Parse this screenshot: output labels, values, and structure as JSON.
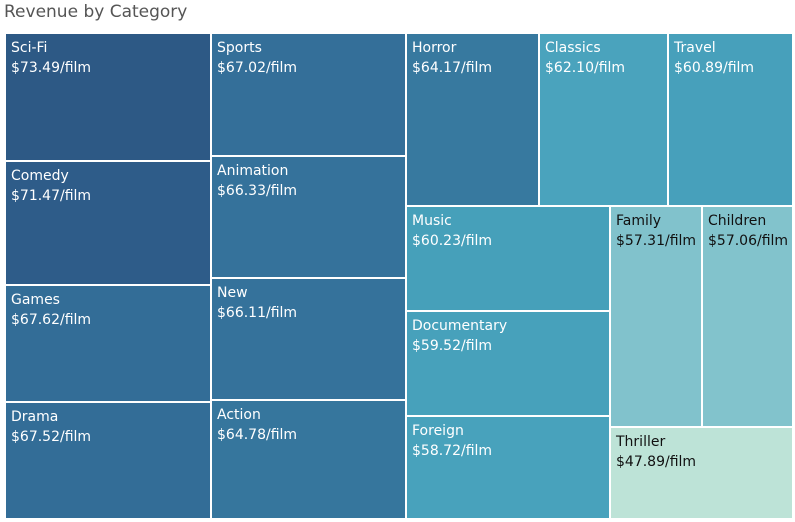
{
  "chart_data": {
    "type": "treemap",
    "title": "Revenue by Category",
    "value_suffix": "/film",
    "items": [
      {
        "name": "Sci-Fi",
        "label": "$73.49/film",
        "value": 73.49,
        "color": "#2d5985",
        "text_color": "#ffffff"
      },
      {
        "name": "Comedy",
        "label": "$71.47/film",
        "value": 71.47,
        "color": "#2e5c89",
        "text_color": "#ffffff"
      },
      {
        "name": "Games",
        "label": "$67.62/film",
        "value": 67.62,
        "color": "#336d97",
        "text_color": "#ffffff"
      },
      {
        "name": "Drama",
        "label": "$67.52/film",
        "value": 67.52,
        "color": "#336d97",
        "text_color": "#ffffff"
      },
      {
        "name": "Sports",
        "label": "$67.02/film",
        "value": 67.02,
        "color": "#346f99",
        "text_color": "#ffffff"
      },
      {
        "name": "Animation",
        "label": "$66.33/film",
        "value": 66.33,
        "color": "#35729b",
        "text_color": "#ffffff"
      },
      {
        "name": "New",
        "label": "$66.11/film",
        "value": 66.11,
        "color": "#35729b",
        "text_color": "#ffffff"
      },
      {
        "name": "Action",
        "label": "$64.78/film",
        "value": 64.78,
        "color": "#36769d",
        "text_color": "#ffffff"
      },
      {
        "name": "Horror",
        "label": "$64.17/film",
        "value": 64.17,
        "color": "#37799f",
        "text_color": "#ffffff"
      },
      {
        "name": "Classics",
        "label": "$62.10/film",
        "value": 62.1,
        "color": "#4aa3bd",
        "text_color": "#ffffff"
      },
      {
        "name": "Travel",
        "label": "$60.89/film",
        "value": 60.89,
        "color": "#47a0bb",
        "text_color": "#ffffff"
      },
      {
        "name": "Music",
        "label": "$60.23/film",
        "value": 60.23,
        "color": "#46a0ba",
        "text_color": "#ffffff"
      },
      {
        "name": "Documentary",
        "label": "$59.52/film",
        "value": 59.52,
        "color": "#47a1bb",
        "text_color": "#ffffff"
      },
      {
        "name": "Foreign",
        "label": "$58.72/film",
        "value": 58.72,
        "color": "#48a2bc",
        "text_color": "#ffffff"
      },
      {
        "name": "Family",
        "label": "$57.31/film",
        "value": 57.31,
        "color": "#81c2cc",
        "text_color": "#111111"
      },
      {
        "name": "Children",
        "label": "$57.06/film",
        "value": 57.06,
        "color": "#82c3cc",
        "text_color": "#111111"
      },
      {
        "name": "Thriller",
        "label": "$47.89/film",
        "value": 47.89,
        "color": "#bde3d7",
        "text_color": "#111111"
      }
    ]
  }
}
